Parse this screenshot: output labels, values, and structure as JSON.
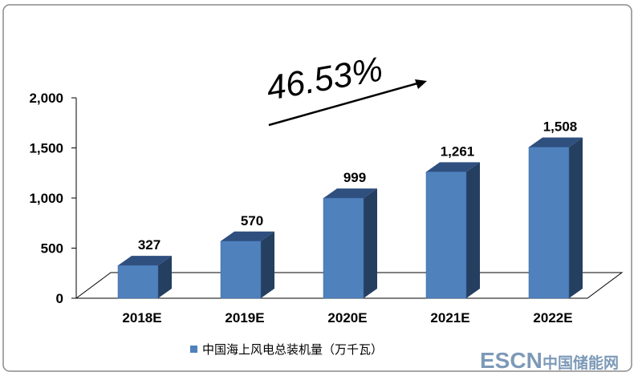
{
  "chart_data": {
    "type": "bar",
    "categories": [
      "2018E",
      "2019E",
      "2020E",
      "2021E",
      "2022E"
    ],
    "series": [
      {
        "name": "中国海上风电总装机量（万千瓦）",
        "values": [
          327,
          570,
          999,
          1261,
          1508
        ],
        "labels": [
          "327",
          "570",
          "999",
          "1,261",
          "1,508"
        ]
      }
    ],
    "ylim": [
      0,
      2000
    ],
    "yticks": [
      "0",
      "500",
      "1,000",
      "1,500",
      "2,000"
    ],
    "ytick_values": [
      0,
      500,
      1000,
      1500,
      2000
    ],
    "grid": false,
    "legend_position": "bottom",
    "annotation": {
      "text": "46.53%"
    },
    "colors": {
      "bar_front": "#4F81BD",
      "bar_side": "#243F60",
      "bar_top": "#2F4F7F",
      "floor": "#000000",
      "legend_swatch": "#4F81BD",
      "watermark_blue": "#6F8FB0"
    }
  },
  "watermark": {
    "brand": "ESCN",
    "text": "中国储能网"
  }
}
